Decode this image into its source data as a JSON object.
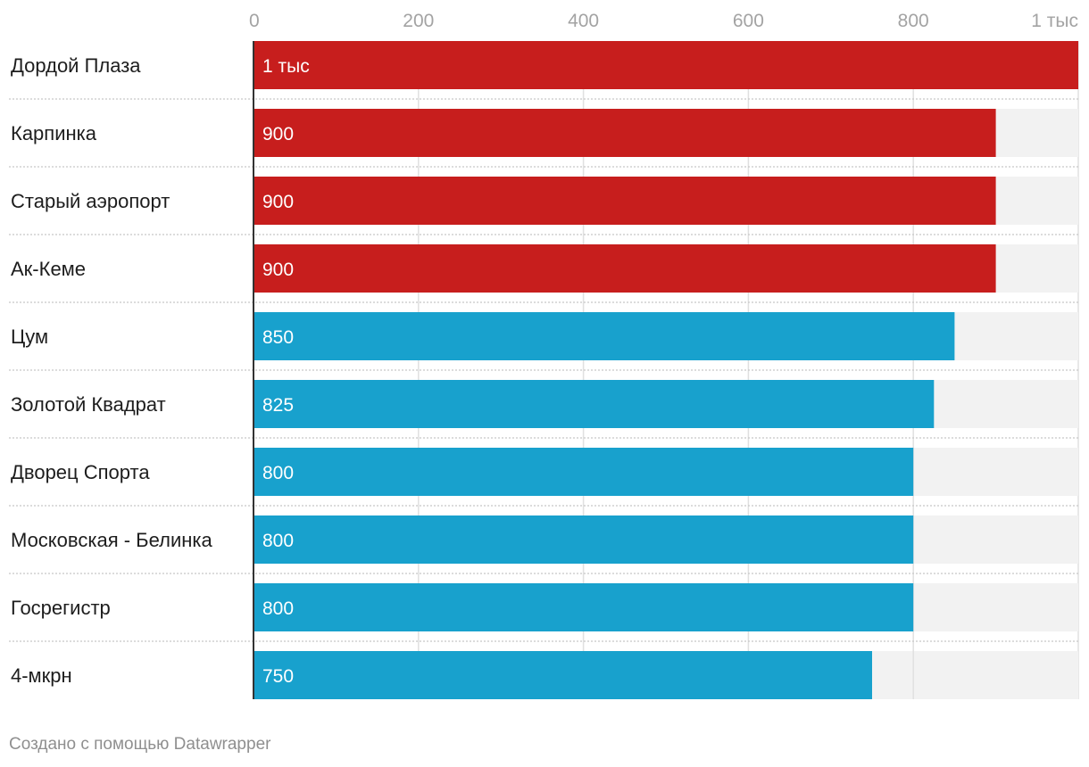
{
  "chart_data": {
    "type": "bar",
    "orientation": "horizontal",
    "categories": [
      "Дордой Плаза",
      "Карпинка",
      "Старый аэропорт",
      "Ак-Кеме",
      "Цум",
      "Золотой Квадрат",
      "Дворец Спорта",
      "Московская - Белинка",
      "Госрегистр",
      "4-мкрн"
    ],
    "values": [
      1000,
      900,
      900,
      900,
      850,
      825,
      800,
      800,
      800,
      750
    ],
    "value_labels": [
      "1 тыс",
      "900",
      "900",
      "900",
      "850",
      "825",
      "800",
      "800",
      "800",
      "750"
    ],
    "highlight": [
      true,
      true,
      true,
      true,
      false,
      false,
      false,
      false,
      false,
      false
    ],
    "xlim": [
      0,
      1000
    ],
    "xticks": [
      0,
      200,
      400,
      600,
      800,
      1000
    ],
    "xtick_labels": [
      "0",
      "200",
      "400",
      "600",
      "800",
      "1 тыс"
    ],
    "axis_position": "top",
    "grid": true,
    "colors": {
      "highlight": "#c71e1d",
      "default": "#18a1cd",
      "track": "#f2f2f2",
      "grid": "#e0e0e0",
      "baseline": "#333333",
      "separator": "#c8c8c8"
    }
  },
  "footer": {
    "credit": "Создано с помощью Datawrapper"
  }
}
